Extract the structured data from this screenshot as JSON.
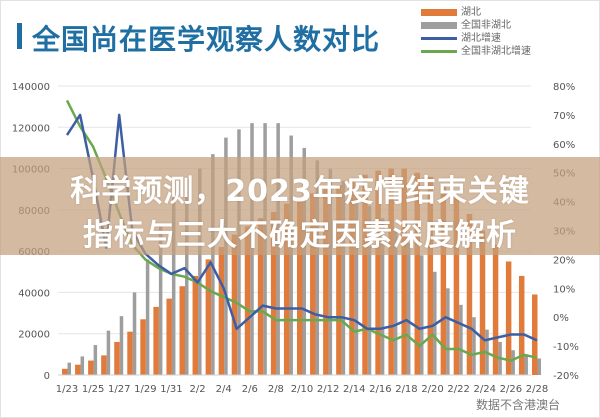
{
  "header": {
    "title": "全国尚在医学观察人数对比"
  },
  "legend": {
    "items": [
      {
        "label": "湖北",
        "type": "bar",
        "color": "#e07b3c"
      },
      {
        "label": "全国非湖北",
        "type": "bar",
        "color": "#9e9e9e"
      },
      {
        "label": "湖北增速",
        "type": "line",
        "color": "#3e5ea3"
      },
      {
        "label": "全国非湖北增速",
        "type": "line",
        "color": "#6aa84f"
      }
    ]
  },
  "banner": {
    "line1": "科学预测，2023年疫情结束关键",
    "line2": "指标与三大不确定因素深度解析"
  },
  "footnote": "数据不含港澳台",
  "colors": {
    "hubei_bar": "#e07b3c",
    "non_hubei_bar": "#9e9e9e",
    "hubei_growth": "#3e5ea3",
    "non_hubei_growth": "#6aa84f",
    "title": "#1f6fa3",
    "banner": "#c4a07d"
  },
  "chart_data": {
    "type": "bar",
    "title": "全国尚在医学观察人数对比",
    "xlabel": "",
    "ylabel": "",
    "y2label": "",
    "ylim": [
      0,
      140000
    ],
    "y2lim": [
      -0.2,
      0.8
    ],
    "yticks": [
      "0",
      "20000",
      "40000",
      "60000",
      "80000",
      "100000",
      "120000",
      "140000"
    ],
    "y2ticks": [
      "-20%",
      "-10%",
      "0%",
      "10%",
      "20%",
      "30%",
      "40%",
      "50%",
      "60%",
      "70%",
      "80%"
    ],
    "xtick_labels": [
      "1/23",
      "1/25",
      "1/27",
      "1/29",
      "1/31",
      "2/2",
      "2/4",
      "2/6",
      "2/8",
      "2/10",
      "2/12",
      "2/14",
      "2/16",
      "2/18",
      "2/20",
      "2/22",
      "2/24",
      "2/26",
      "2/28"
    ],
    "grid": true,
    "legend_position": "top-right",
    "categories": [
      "1/23",
      "1/24",
      "1/25",
      "1/26",
      "1/27",
      "1/28",
      "1/29",
      "1/30",
      "1/31",
      "2/1",
      "2/2",
      "2/3",
      "2/4",
      "2/5",
      "2/6",
      "2/7",
      "2/8",
      "2/9",
      "2/10",
      "2/11",
      "2/12",
      "2/13",
      "2/14",
      "2/15",
      "2/16",
      "2/17",
      "2/18",
      "2/19",
      "2/20",
      "2/21",
      "2/22",
      "2/23",
      "2/24",
      "2/25",
      "2/26",
      "2/27",
      "2/28"
    ],
    "series": [
      {
        "name": "湖北",
        "type": "bar",
        "axis": "left",
        "values": [
          3000,
          5000,
          7000,
          9500,
          16000,
          21000,
          27000,
          33000,
          37000,
          43000,
          48000,
          56000,
          62000,
          68000,
          72000,
          76000,
          79000,
          83000,
          86000,
          88000,
          90000,
          92000,
          95000,
          97000,
          99000,
          100000,
          100000,
          98000,
          96000,
          92000,
          86000,
          78000,
          70000,
          63000,
          55000,
          48000,
          39000
        ]
      },
      {
        "name": "全国非湖北",
        "type": "bar",
        "axis": "left",
        "values": [
          6000,
          9000,
          14500,
          21500,
          28500,
          40000,
          56000,
          73000,
          86000,
          95000,
          100000,
          107000,
          115000,
          119000,
          122000,
          122000,
          122000,
          116000,
          110000,
          104000,
          100000,
          94000,
          88000,
          82000,
          76000,
          70000,
          64000,
          58000,
          50000,
          42000,
          34000,
          28000,
          22000,
          16000,
          12000,
          10000,
          8000
        ]
      },
      {
        "name": "湖北增速",
        "type": "line",
        "axis": "right",
        "values": [
          0.63,
          0.7,
          0.48,
          0.24,
          0.7,
          0.3,
          0.22,
          0.18,
          0.15,
          0.17,
          0.12,
          0.19,
          0.1,
          -0.04,
          0.0,
          0.04,
          0.03,
          0.03,
          0.03,
          0.01,
          0.0,
          0.0,
          -0.01,
          -0.04,
          -0.04,
          -0.03,
          -0.01,
          -0.04,
          -0.03,
          0.0,
          -0.02,
          -0.04,
          -0.08,
          -0.07,
          -0.06,
          -0.06,
          -0.08
        ]
      },
      {
        "name": "全国非湖北增速",
        "type": "line",
        "axis": "right",
        "values": [
          0.75,
          0.66,
          0.59,
          0.48,
          0.36,
          0.25,
          0.2,
          0.17,
          0.15,
          0.14,
          0.12,
          0.09,
          0.07,
          0.05,
          0.02,
          0.02,
          -0.01,
          -0.01,
          -0.01,
          -0.01,
          -0.01,
          -0.01,
          -0.05,
          -0.04,
          -0.06,
          -0.08,
          -0.06,
          -0.1,
          -0.06,
          -0.11,
          -0.11,
          -0.13,
          -0.12,
          -0.14,
          -0.15,
          -0.13,
          -0.14
        ]
      }
    ]
  }
}
